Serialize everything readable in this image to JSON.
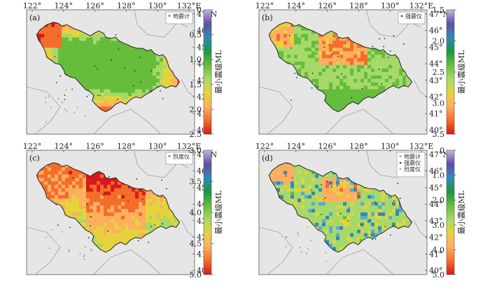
{
  "figure": {
    "lon_ticks": [
      "122°",
      "124°",
      "126°",
      "128°",
      "130°",
      "132°E"
    ],
    "lat_ticks": [
      "47°N",
      "46°",
      "45°",
      "44°",
      "43°",
      "42°",
      "41°",
      "40°"
    ],
    "colorbar_title": "最小震级ML",
    "panels": [
      {
        "label": "(a)",
        "legend": [
          "地震计"
        ],
        "legend_marker": "square",
        "colorbar_ticks": [
          "0",
          "0.5",
          "1.0",
          "1.5",
          "2.0",
          "2.5"
        ],
        "colorbar_range": [
          0,
          2.5
        ],
        "pattern": "a"
      },
      {
        "label": "(b)",
        "legend": [
          "强震仪"
        ],
        "legend_marker": "dot",
        "colorbar_ticks": [
          "1.5",
          "2.0",
          "2.5",
          "3.0",
          "3.5"
        ],
        "colorbar_range": [
          1.5,
          3.5
        ],
        "pattern": "b"
      },
      {
        "label": "(c)",
        "legend": [
          "烈度仪"
        ],
        "legend_marker": "square",
        "colorbar_ticks": [
          "3.0",
          "3.5",
          "4.0",
          "4.5",
          "5.0"
        ],
        "colorbar_range": [
          3.0,
          5.0
        ],
        "pattern": "c"
      },
      {
        "label": "(d)",
        "legend": [
          "地震计",
          "强震仪",
          "烈度仪"
        ],
        "legend_marker": "mixed",
        "colorbar_ticks": [
          "0",
          "1.0",
          "2.0",
          "3.0",
          "4.0",
          "5.0"
        ],
        "colorbar_range": [
          0,
          5.0
        ],
        "pattern": "d"
      }
    ],
    "colors": {
      "background": "#e6e6e6",
      "border": "#555555",
      "province_outline": "#222222",
      "colormap": [
        "#d7191c",
        "#f46d2a",
        "#fdae61",
        "#e6d33c",
        "#a6d96a",
        "#66bd3c",
        "#1a9641",
        "#3288bd",
        "#5e4fa2",
        "#c9b2e0"
      ]
    }
  }
}
